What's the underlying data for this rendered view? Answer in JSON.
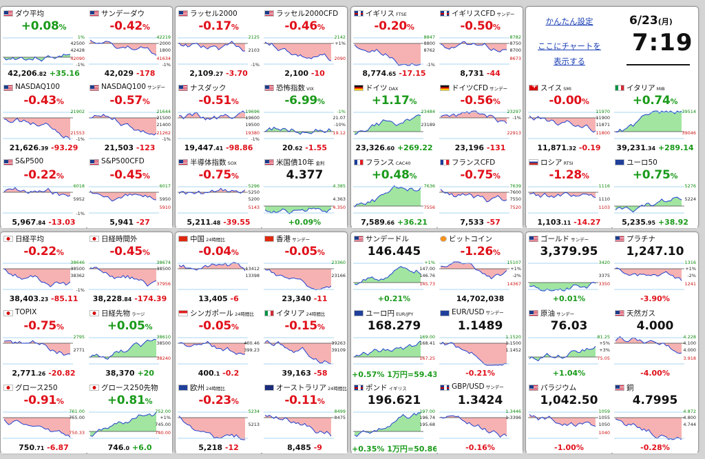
{
  "groups": [
    {
      "cells": [
        {
          "name": "ダウ平均",
          "flag": "us",
          "sub": "",
          "pct": "+0.08",
          "mode": "pct",
          "dir": "up",
          "foot_main": "42,206",
          "foot_dec": ".82",
          "foot_chg": "+35.16",
          "t1": "1%",
          "t2": "42500",
          "t3": "42428",
          "t4": "42090",
          "t5": "-1%"
        },
        {
          "name": "サンデーダウ",
          "flag": "us",
          "sub": "",
          "pct": "-0.42",
          "mode": "pct",
          "dir": "dn",
          "foot_main": "42,029",
          "foot_dec": "",
          "foot_chg": "-178",
          "t1": "42219",
          "t2": "2000",
          "t3": "1800",
          "t4": "41634",
          "t5": "-1%"
        },
        {
          "name": "NASDAQ100",
          "flag": "us",
          "sub": "",
          "pct": "-0.43",
          "mode": "pct",
          "dir": "dn",
          "foot_main": "21,626",
          "foot_dec": ".39",
          "foot_chg": "-93.29",
          "t1": "21902",
          "t2": "",
          "t3": "",
          "t4": "21553",
          "t5": "-1%"
        },
        {
          "name": "NASDAQ100",
          "flag": "us",
          "sub": "サンデー",
          "pct": "-0.57",
          "mode": "pct",
          "dir": "dn",
          "foot_main": "21,503",
          "foot_dec": "",
          "foot_chg": "-123",
          "t1": "21644",
          "t2": "21500",
          "t3": "21400",
          "t4": "21262",
          "t5": "-1%"
        },
        {
          "name": "S&P500",
          "flag": "us",
          "sub": "",
          "pct": "-0.22",
          "mode": "pct",
          "dir": "dn",
          "foot_main": "5,967",
          "foot_dec": ".84",
          "foot_chg": "-13.03",
          "t1": "6018",
          "t2": "",
          "t3": "5952",
          "t4": "",
          "t5": "-1%"
        },
        {
          "name": "S&P500CFD",
          "flag": "us",
          "sub": "",
          "pct": "-0.45",
          "mode": "pct",
          "dir": "dn",
          "foot_main": "5,941",
          "foot_dec": "",
          "foot_chg": "-27",
          "t1": "6017",
          "t2": "",
          "t3": "5950",
          "t4": "5910",
          "t5": ""
        }
      ]
    },
    {
      "cells": [
        {
          "name": "ラッセル2000",
          "flag": "us",
          "sub": "",
          "pct": "-0.17",
          "mode": "pct",
          "dir": "dn",
          "foot_main": "2,109",
          "foot_dec": ".27",
          "foot_chg": "-3.70",
          "t1": "2125",
          "t2": "",
          "t3": "2103",
          "t4": "",
          "t5": "-1%"
        },
        {
          "name": "ラッセル2000CFD",
          "flag": "us",
          "sub": "",
          "pct": "-0.46",
          "mode": "pct",
          "dir": "dn",
          "foot_main": "2,100",
          "foot_dec": "",
          "foot_chg": "-10",
          "t1": "2142",
          "t2": "+1%",
          "t3": "",
          "t4": "2090",
          "t5": ""
        },
        {
          "name": "ナスダック",
          "flag": "us",
          "sub": "",
          "pct": "-0.51",
          "mode": "pct",
          "dir": "dn",
          "foot_main": "19,447",
          "foot_dec": ".41",
          "foot_chg": "-98.86",
          "t1": "19696",
          "t2": "19600",
          "t3": "19500",
          "t4": "19380",
          "t5": "-1%"
        },
        {
          "name": "恐怖指数",
          "flag": "us",
          "sub": "VIX",
          "pct": "-6.99",
          "mode": "pct",
          "dir": "up",
          "foot_main": "20",
          "foot_dec": ".62",
          "foot_chg": "-1.55",
          "t1": "-1%",
          "t2": "21.07",
          "t3": "-10%",
          "t4": "19.12",
          "t5": ""
        },
        {
          "name": "半導体指数",
          "flag": "us",
          "sub": "SOX",
          "pct": "-0.75",
          "mode": "pct",
          "dir": "dn",
          "foot_main": "5,211",
          "foot_dec": ".48",
          "foot_chg": "-39.55",
          "t1": "5296",
          "t2": "5250",
          "t3": "5200",
          "t4": "5143",
          "t5": ""
        },
        {
          "name": "米国債10年",
          "flag": "us",
          "sub": "金利",
          "pct": "4.377",
          "mode": "price",
          "dir": "up",
          "foot_main": "",
          "foot_dec": "",
          "foot_chg": "+0.09%",
          "t1": "4.385",
          "t2": "",
          "t3": "4.363",
          "t4": "4.350",
          "t5": ""
        }
      ]
    },
    {
      "cells": [
        {
          "name": "イギリス",
          "flag": "uk",
          "sub": "FTSE",
          "pct": "-0.20",
          "mode": "pct",
          "dir": "dn",
          "foot_main": "8,774",
          "foot_dec": ".65",
          "foot_chg": "-17.15",
          "t1": "8847",
          "t2": "8800",
          "t3": "8762",
          "t4": "",
          "t5": "-1%"
        },
        {
          "name": "イギリスCFD",
          "flag": "uk",
          "sub": "サンデー",
          "pct": "-0.50",
          "mode": "pct",
          "dir": "dn",
          "foot_main": "8,731",
          "foot_dec": "",
          "foot_chg": "-44",
          "t1": "8782",
          "t2": "8750",
          "t3": "8700",
          "t4": "8673",
          "t5": ""
        },
        {
          "name": "ドイツ",
          "flag": "de",
          "sub": "DAX",
          "pct": "+1.17",
          "mode": "pct",
          "dir": "up",
          "foot_main": "23,326",
          "foot_dec": ".60",
          "foot_chg": "+269.22",
          "t1": "23484",
          "t2": "",
          "t3": "23189",
          "t4": "",
          "t5": ""
        },
        {
          "name": "ドイツCFD",
          "flag": "de",
          "sub": "サンデー",
          "pct": "-0.56",
          "mode": "pct",
          "dir": "dn",
          "foot_main": "23,196",
          "foot_dec": "",
          "foot_chg": "-131",
          "t1": "23297",
          "t2": "-1%",
          "t3": "",
          "t4": "22913",
          "t5": ""
        },
        {
          "name": "フランス",
          "flag": "fr",
          "sub": "CAC40",
          "pct": "+0.48",
          "mode": "pct",
          "dir": "up",
          "foot_main": "7,589",
          "foot_dec": ".66",
          "foot_chg": "+36.21",
          "t1": "7636",
          "t2": "",
          "t3": "",
          "t4": "7556",
          "t5": ""
        },
        {
          "name": "フランスCFD",
          "flag": "fr",
          "sub": "",
          "pct": "-0.75",
          "mode": "pct",
          "dir": "dn",
          "foot_main": "7,533",
          "foot_dec": "",
          "foot_chg": "-57",
          "t1": "7639",
          "t2": "7600",
          "t3": "7550",
          "t4": "7520",
          "t5": ""
        }
      ]
    },
    {
      "cells": [
        {
          "name": "スイス",
          "flag": "ch",
          "sub": "SMI",
          "pct": "-0.00",
          "mode": "pct",
          "dir": "dn",
          "foot_main": "11,871",
          "foot_dec": ".32",
          "foot_chg": "-0.19",
          "t1": "11970",
          "t2": "11900",
          "t3": "11871",
          "t4": "11800",
          "t5": ""
        },
        {
          "name": "イタリア",
          "flag": "it",
          "sub": "MIB",
          "pct": "+0.74",
          "mode": "pct",
          "dir": "up",
          "foot_main": "39,231",
          "foot_dec": ".34",
          "foot_chg": "+289.14",
          "t1": "39514",
          "t2": "",
          "t3": "",
          "t4": "39046",
          "t5": ""
        },
        {
          "name": "ロシア",
          "flag": "ru",
          "sub": "RTSI",
          "pct": "-1.28",
          "mode": "pct",
          "dir": "dn",
          "foot_main": "1,103",
          "foot_dec": ".11",
          "foot_chg": "-14.27",
          "t1": "1116",
          "t2": "",
          "t3": "1110",
          "t4": "1103",
          "t5": ""
        },
        {
          "name": "ユーロ50",
          "flag": "eu",
          "sub": "",
          "pct": "+0.75",
          "mode": "pct",
          "dir": "up",
          "foot_main": "5,235",
          "foot_dec": ".95",
          "foot_chg": "+38.92",
          "t1": "5276",
          "t2": "",
          "t3": "5224",
          "t4": "",
          "t5": ""
        }
      ]
    },
    {
      "cells": [
        {
          "name": "日経平均",
          "flag": "jp",
          "sub": "",
          "pct": "-0.22",
          "mode": "pct",
          "dir": "dn",
          "foot_main": "38,403",
          "foot_dec": ".23",
          "foot_chg": "-85.11",
          "t1": "38646",
          "t2": "38500",
          "t3": "38362",
          "t4": "",
          "t5": "-1%"
        },
        {
          "name": "日経時間外",
          "flag": "jp",
          "sub": "",
          "pct": "-0.45",
          "mode": "pct",
          "dir": "dn",
          "foot_main": "38,228",
          "foot_dec": ".84",
          "foot_chg": "-174.39",
          "t1": "38674",
          "t2": "38500",
          "t3": "",
          "t4": "37956",
          "t5": ""
        },
        {
          "name": "TOPIX",
          "flag": "jp",
          "sub": "",
          "pct": "-0.75",
          "mode": "pct",
          "dir": "dn",
          "foot_main": "2,771",
          "foot_dec": ".26",
          "foot_chg": "-20.82",
          "t1": "2795",
          "t2": "",
          "t3": "2771",
          "t4": "",
          "t5": ""
        },
        {
          "name": "日経先物",
          "flag": "jp",
          "sub": "ラージ",
          "pct": "+0.05",
          "mode": "pct",
          "dir": "up",
          "foot_main": "38,370",
          "foot_dec": "",
          "foot_chg": "+20",
          "t1": "38610",
          "t2": "38500",
          "t3": "",
          "t4": "38240",
          "t5": ""
        },
        {
          "name": "グロース250",
          "flag": "jp",
          "sub": "",
          "pct": "-0.91",
          "mode": "pct",
          "dir": "dn",
          "foot_main": "750",
          "foot_dec": ".71",
          "foot_chg": "-6.87",
          "t1": "761.00",
          "t2": "755.00",
          "t3": "",
          "t4": "750.33",
          "t5": ""
        },
        {
          "name": "グロース250先物",
          "flag": "jp",
          "sub": "",
          "pct": "+0.81",
          "mode": "pct",
          "dir": "up",
          "foot_main": "746",
          "foot_dec": ".0",
          "foot_chg": "+6.0",
          "t1": "752.00",
          "t2": "+1%",
          "t3": "745.00",
          "t4": "740.00",
          "t5": ""
        }
      ]
    },
    {
      "cells": [
        {
          "name": "中国",
          "flag": "cn",
          "sub": "24時間比",
          "pct": "-0.04",
          "mode": "pct",
          "dir": "dn",
          "foot_main": "13,405",
          "foot_dec": "",
          "foot_chg": "-6",
          "t1": "",
          "t2": "13412",
          "t3": "13398",
          "t4": "",
          "t5": ""
        },
        {
          "name": "香港",
          "flag": "hk",
          "sub": "サンデー",
          "pct": "-0.05",
          "mode": "pct",
          "dir": "dn",
          "foot_main": "23,340",
          "foot_dec": "",
          "foot_chg": "-11",
          "t1": "23360",
          "t2": "",
          "t3": "23166",
          "t4": "",
          "t5": ""
        },
        {
          "name": "シンガポール",
          "flag": "sg",
          "sub": "24時間比",
          "pct": "-0.05",
          "mode": "pct",
          "dir": "dn",
          "foot_main": "400",
          "foot_dec": ".1",
          "foot_chg": "-0.2",
          "t1": "",
          "t2": "400.46",
          "t3": "399.23",
          "t4": "",
          "t5": ""
        },
        {
          "name": "イタリア",
          "flag": "it",
          "sub": "24時間比",
          "pct": "-0.15",
          "mode": "pct",
          "dir": "dn",
          "foot_main": "39,163",
          "foot_dec": "",
          "foot_chg": "-58",
          "t1": "",
          "t2": "39263",
          "t3": "39109",
          "t4": "",
          "t5": ""
        },
        {
          "name": "欧州",
          "flag": "eu",
          "sub": "24時間比",
          "pct": "-0.23",
          "mode": "pct",
          "dir": "dn",
          "foot_main": "5,218",
          "foot_dec": "",
          "foot_chg": "-12",
          "t1": "5234",
          "t2": "",
          "t3": "5213",
          "t4": "",
          "t5": ""
        },
        {
          "name": "オーストラリア",
          "flag": "au",
          "sub": "24時間比",
          "pct": "-0.11",
          "mode": "pct",
          "dir": "dn",
          "foot_main": "8,485",
          "foot_dec": "",
          "foot_chg": "-9",
          "t1": "8499",
          "t2": "8475",
          "t3": "",
          "t4": "",
          "t5": ""
        }
      ]
    },
    {
      "cells": [
        {
          "name": "サンデードル",
          "flag": "us",
          "sub": "",
          "pct": "146.445",
          "mode": "price",
          "dir": "up",
          "foot_main": "",
          "foot_dec": "",
          "foot_chg": "+0.21%",
          "t1": "+1%",
          "t2": "147.00",
          "t3": "146.76",
          "t4": "145.73",
          "t5": ""
        },
        {
          "name": "ビットコイン",
          "flag": "btc",
          "sub": "",
          "pct": "-1.26",
          "mode": "pct",
          "dir": "dn",
          "foot_main": "14,702,038",
          "foot_dec": "",
          "foot_chg": "",
          "t1": "15107",
          "t2": "+1%",
          "t3": "-2%",
          "t4": "14367",
          "t5": ""
        },
        {
          "name": "ユーロ円",
          "flag": "eu",
          "sub": "EUR/JPY",
          "pct": "168.279",
          "mode": "price",
          "dir": "up",
          "foot_main": "",
          "foot_dec": "",
          "foot_chg": "+0.57%  1万円=59.43",
          "t1": "169.00",
          "t2": "168.41",
          "t3": "",
          "t4": "167.25",
          "t5": ""
        },
        {
          "name": "EUR/USD",
          "flag": "eu",
          "sub": "サンデー",
          "pct": "1.1489",
          "mode": "price",
          "dir": "dn",
          "foot_main": "",
          "foot_dec": "",
          "foot_chg": "-0.21%",
          "t1": "1.1520",
          "t2": "1.1500",
          "t3": "1.1452",
          "t4": "",
          "t5": ""
        },
        {
          "name": "ポンド",
          "flag": "uk",
          "sub": "イギリス",
          "pct": "196.621",
          "mode": "price",
          "dir": "up",
          "foot_main": "",
          "foot_dec": "",
          "foot_chg": "+0.35%  1万円=50.86",
          "t1": "197.00",
          "t2": "196.74",
          "t3": "195.68",
          "t4": "",
          "t5": ""
        },
        {
          "name": "GBP/USD",
          "flag": "uk",
          "sub": "サンデー",
          "pct": "1.3424",
          "mode": "price",
          "dir": "dn",
          "foot_main": "",
          "foot_dec": "",
          "foot_chg": "-0.16%",
          "t1": "1.3446",
          "t2": "1.3396",
          "t3": "",
          "t4": "",
          "t5": ""
        }
      ]
    },
    {
      "cells": [
        {
          "name": "ゴールド",
          "flag": "us",
          "sub": "サンデー",
          "pct": "3,379.95",
          "mode": "price",
          "dir": "up",
          "foot_main": "",
          "foot_dec": "",
          "foot_chg": "+0.01%",
          "t1": "3420",
          "t2": "",
          "t3": "3375",
          "t4": "3350",
          "t5": ""
        },
        {
          "name": "プラチナ",
          "flag": "us",
          "sub": "",
          "pct": "1,247.10",
          "mode": "price",
          "dir": "dn",
          "foot_main": "",
          "foot_dec": "",
          "foot_chg": "-3.90%",
          "t1": "1316",
          "t2": "+1%",
          "t3": "-2%",
          "t4": "1241",
          "t5": ""
        },
        {
          "name": "原油",
          "flag": "us",
          "sub": "サンデー",
          "pct": "76.03",
          "mode": "price",
          "dir": "up",
          "foot_main": "",
          "foot_dec": "",
          "foot_chg": "+1.04%",
          "t1": "81.25",
          "t2": "+5%",
          "t3": "+3%",
          "t4": "75.05",
          "t5": ""
        },
        {
          "name": "天然ガス",
          "flag": "us",
          "sub": "",
          "pct": "4.000",
          "mode": "price",
          "dir": "dn",
          "foot_main": "",
          "foot_dec": "",
          "foot_chg": "-4.00%",
          "t1": "4.228",
          "t2": "4.100",
          "t3": "4.000",
          "t4": "3.918",
          "t5": ""
        },
        {
          "name": "パラジウム",
          "flag": "us",
          "sub": "",
          "pct": "1,042.50",
          "mode": "price",
          "dir": "dn",
          "foot_main": "",
          "foot_dec": "",
          "foot_chg": "-1.00%",
          "t1": "1059",
          "t2": "1055",
          "t3": "1050",
          "t4": "1040",
          "t5": ""
        },
        {
          "name": "銅",
          "flag": "us",
          "sub": "",
          "pct": "4.7995",
          "mode": "price",
          "dir": "dn",
          "foot_main": "",
          "foot_dec": "",
          "foot_chg": "-0.28%",
          "t1": "4.872",
          "t2": "4.800",
          "t3": "4.744",
          "t4": "",
          "t5": ""
        }
      ]
    }
  ],
  "settings": {
    "link1": "かんたん設定",
    "link2a": "ここにチャートを",
    "link2b": "表示する"
  },
  "datetime": {
    "date": "6/23",
    "weekday": "(月)",
    "time": "7:19"
  },
  "colors": {
    "up": "#1a9a1a",
    "down": "#e0101a",
    "fill_up": "#90e090",
    "fill_down": "#f4a4a4"
  }
}
